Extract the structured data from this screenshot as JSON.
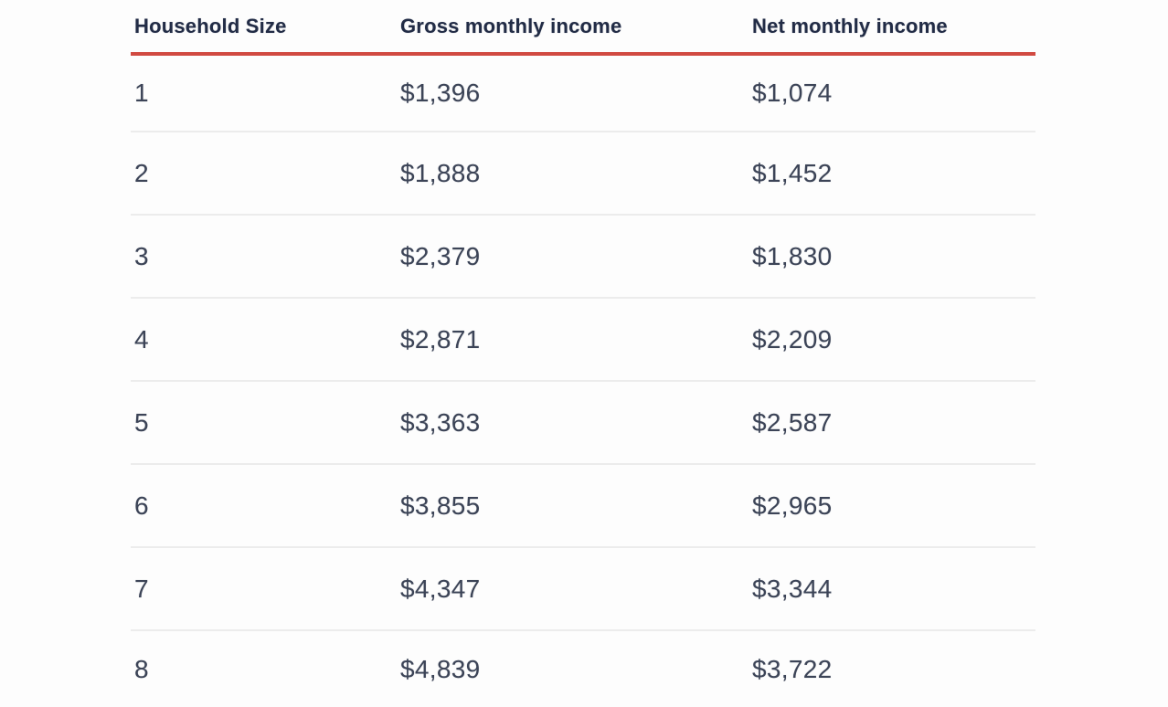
{
  "table": {
    "headers": [
      "Household Size",
      "Gross monthly income",
      "Net monthly income"
    ],
    "rows": [
      [
        "1",
        "$1,396",
        "$1,074"
      ],
      [
        "2",
        "$1,888",
        "$1,452"
      ],
      [
        "3",
        "$2,379",
        "$1,830"
      ],
      [
        "4",
        "$2,871",
        "$2,209"
      ],
      [
        "5",
        "$3,363",
        "$2,587"
      ],
      [
        "6",
        "$3,855",
        "$2,965"
      ],
      [
        "7",
        "$4,347",
        "$3,344"
      ],
      [
        "8",
        "$4,839",
        "$3,722"
      ]
    ]
  },
  "chart_data": {
    "type": "table",
    "columns": [
      "Household Size",
      "Gross monthly income",
      "Net monthly income"
    ],
    "rows": [
      [
        1,
        1396,
        1074
      ],
      [
        2,
        1888,
        1452
      ],
      [
        3,
        2379,
        1830
      ],
      [
        4,
        2871,
        2209
      ],
      [
        5,
        3363,
        2587
      ],
      [
        6,
        3855,
        2965
      ],
      [
        7,
        4347,
        3344
      ],
      [
        8,
        4839,
        3722
      ]
    ]
  },
  "colors": {
    "accent_rule": "#d14a41",
    "header_text": "#222c46",
    "cell_text": "#3c4457",
    "row_divider": "#ececec",
    "background": "#fdfdfd"
  }
}
